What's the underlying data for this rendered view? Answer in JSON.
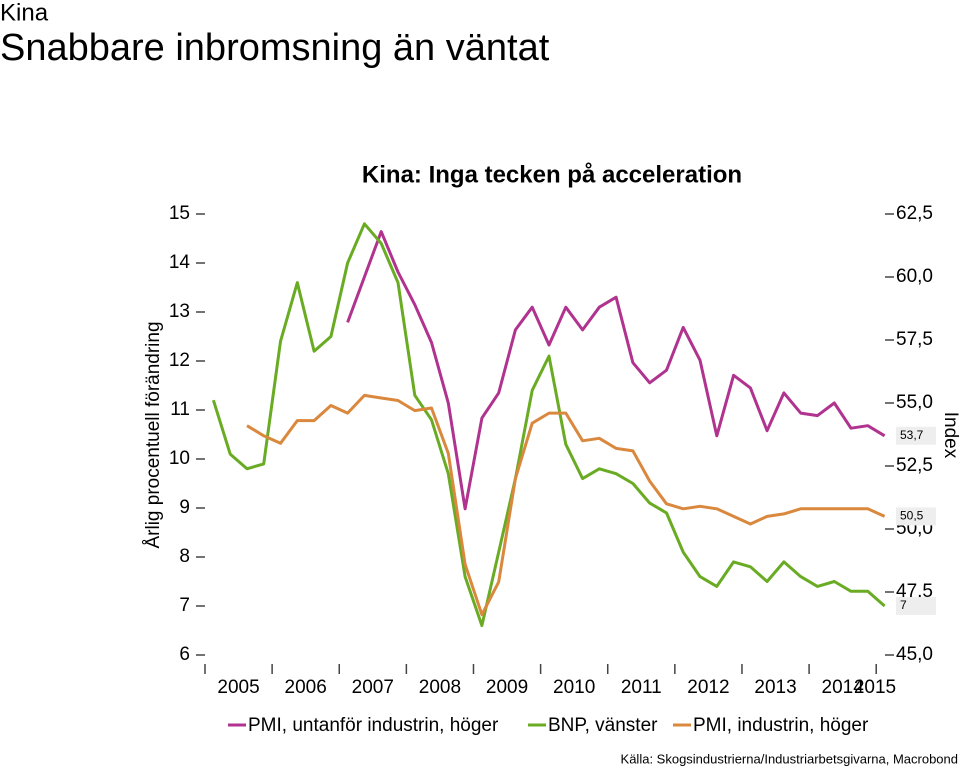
{
  "header": {
    "kicker": "Kina",
    "title": "Snabbare inbromsning än väntat"
  },
  "chart_data": {
    "type": "line",
    "title": "Kina: Inga tecken på acceleration",
    "y_label": "Årlig procentuell förändring",
    "y2_label": "Index",
    "source": "Källa: Skogsindustrierna/Industriarbetsgivarna, Macrobond",
    "x": [
      2005.125,
      2005.375,
      2005.625,
      2005.875,
      2006.125,
      2006.375,
      2006.625,
      2006.875,
      2007.125,
      2007.375,
      2007.625,
      2007.875,
      2008.125,
      2008.375,
      2008.625,
      2008.875,
      2009.125,
      2009.375,
      2009.625,
      2009.875,
      2010.125,
      2010.375,
      2010.625,
      2010.875,
      2011.125,
      2011.375,
      2011.625,
      2011.875,
      2012.125,
      2012.375,
      2012.625,
      2012.875,
      2013.125,
      2013.375,
      2013.625,
      2013.875,
      2014.125,
      2014.375,
      2014.625,
      2014.875,
      2015.125
    ],
    "xlim": [
      2005,
      2015.25
    ],
    "xticks": [
      2005,
      2006,
      2007,
      2008,
      2009,
      2010,
      2011,
      2012,
      2013,
      2014,
      2015
    ],
    "ylim": [
      6,
      15
    ],
    "yticks": [
      6,
      7,
      8,
      9,
      10,
      11,
      12,
      13,
      14,
      15
    ],
    "y2lim": [
      45,
      62.5
    ],
    "y2ticks": [
      {
        "value": 45,
        "label": "45,0"
      },
      {
        "value": 47.5,
        "label": "47,5"
      },
      {
        "value": 50,
        "label": "50,0"
      },
      {
        "value": 52.5,
        "label": "52,5"
      },
      {
        "value": 55,
        "label": "55,0"
      },
      {
        "value": 57.5,
        "label": "57,5"
      },
      {
        "value": 60,
        "label": "60,0"
      },
      {
        "value": 62.5,
        "label": "62,5"
      }
    ],
    "series": [
      {
        "name": "PMI, untanför industrin, höger",
        "color": "#b0338f",
        "axis": "y2",
        "values": [
          null,
          null,
          null,
          null,
          null,
          null,
          null,
          null,
          58.2,
          60.0,
          61.8,
          60.2,
          58.9,
          57.4,
          55.0,
          50.8,
          54.4,
          55.4,
          57.9,
          58.8,
          57.3,
          58.8,
          57.9,
          58.8,
          59.2,
          56.6,
          55.8,
          56.3,
          58.0,
          56.7,
          53.7,
          56.1,
          55.6,
          53.9,
          55.4,
          54.6,
          54.5,
          55.0,
          54.0,
          54.1,
          53.7
        ]
      },
      {
        "name": "BNP, vänster",
        "color": "#6aab24",
        "values": [
          11.2,
          10.1,
          9.8,
          9.9,
          12.4,
          13.6,
          12.2,
          12.5,
          14.0,
          14.8,
          14.4,
          13.6,
          11.3,
          10.8,
          9.7,
          7.6,
          6.6,
          8.1,
          9.6,
          11.4,
          12.1,
          10.3,
          9.6,
          9.8,
          9.7,
          9.5,
          9.1,
          8.9,
          8.1,
          7.6,
          7.4,
          7.9,
          7.8,
          7.5,
          7.9,
          7.6,
          7.4,
          7.5,
          7.3,
          7.3,
          7.0
        ]
      },
      {
        "name": "PMI, industrin, höger",
        "color": "#d9883d",
        "axis": "y2",
        "values": [
          null,
          null,
          54.1,
          53.7,
          53.4,
          54.3,
          54.3,
          54.9,
          54.6,
          55.3,
          55.2,
          55.1,
          54.7,
          54.8,
          53.0,
          48.6,
          46.6,
          47.9,
          52.0,
          54.2,
          54.6,
          54.6,
          53.5,
          53.6,
          53.2,
          53.1,
          51.9,
          51.0,
          50.8,
          50.9,
          50.8,
          50.5,
          50.2,
          50.5,
          50.6,
          50.8,
          50.8,
          50.8,
          50.8,
          50.8,
          50.5
        ]
      }
    ],
    "annotations": [
      {
        "label": "53,7",
        "value": 53.7,
        "axis": "y2"
      },
      {
        "label": "50,5",
        "value": 50.5,
        "axis": "y2"
      },
      {
        "label": "7",
        "value": 7,
        "axis": "y"
      }
    ]
  }
}
